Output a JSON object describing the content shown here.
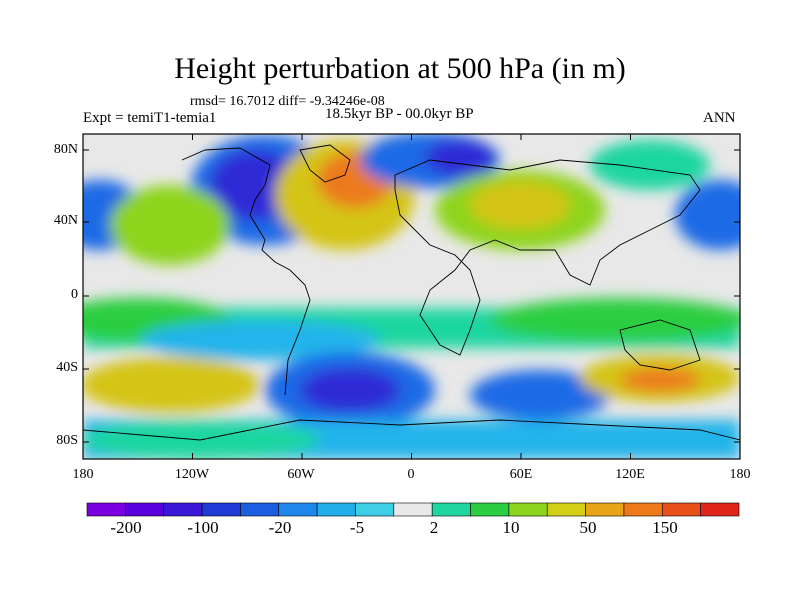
{
  "title": "Height perturbation at 500 hPa (in m)",
  "subtitle_stats": "rmsd= 16.7012 diff= -9.34246e-08",
  "experiment": "Expt = temiT1-temia1",
  "period": "18.5kyr BP - 00.0kyr BP",
  "season": "ANN",
  "lat_labels": [
    "80N",
    "40N",
    "0",
    "40S",
    "80S"
  ],
  "lon_labels": [
    "180",
    "120W",
    "60W",
    "0",
    "60E",
    "120E",
    "180"
  ],
  "colorbar": {
    "labels": [
      "-200",
      "-100",
      "-20",
      "-5",
      "2",
      "10",
      "50",
      "150"
    ],
    "colors": [
      "#7b00e0",
      "#5a00dc",
      "#3a1ad8",
      "#1f3bd6",
      "#1b5ee0",
      "#1f86ec",
      "#22aee8",
      "#3ecfe6",
      "#e8e8e8",
      "#1fd6a0",
      "#2bce3f",
      "#8ed41e",
      "#d2cf16",
      "#e8a41a",
      "#ec7a1a",
      "#e8501a",
      "#e0261a"
    ]
  },
  "colors": {
    "strong_neg": "#2d2bd6",
    "neg": "#1f6ae6",
    "weak_neg": "#22b4ea",
    "neutral": "#e8e8e8",
    "weak_pos": "#1fd6a0",
    "pos": "#8ed41e",
    "strong_pos": "#d4c416",
    "max_pos": "#ec7a1a"
  }
}
